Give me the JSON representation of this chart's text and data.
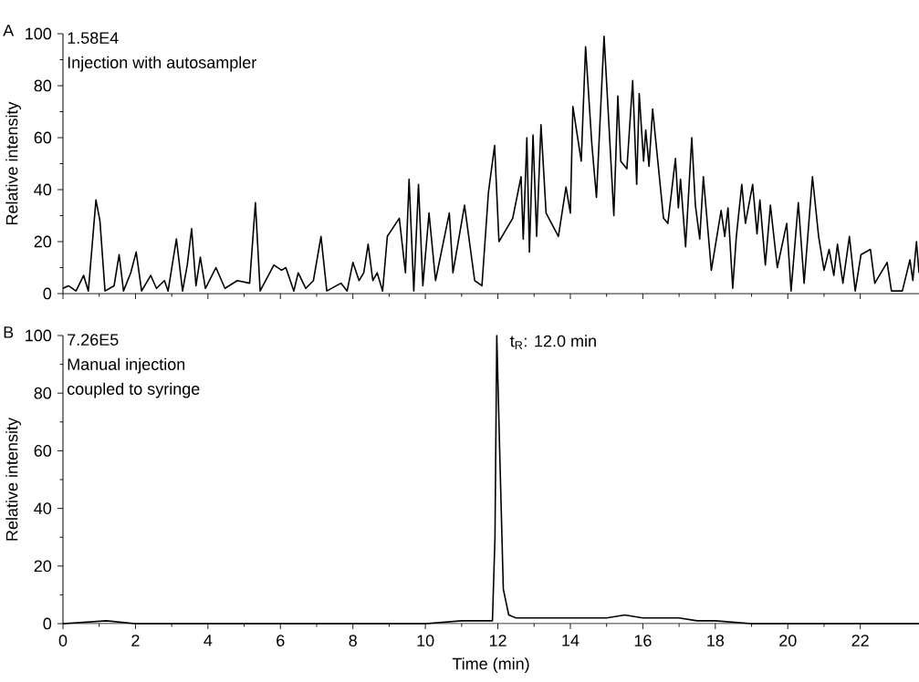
{
  "chart_data": [
    {
      "type": "line",
      "ylabel": "Relative intensity",
      "annotations": [
        "A",
        "1.58E4",
        "Injection with autosampler"
      ],
      "tick_labels": "y",
      "xlim": [
        0,
        23.62
      ],
      "ylim": [
        0,
        100
      ],
      "xticks": [
        {
          "value": 0,
          "label": null
        },
        {
          "value": 2,
          "label": null
        },
        {
          "value": 4,
          "label": null
        },
        {
          "value": 6,
          "label": null
        },
        {
          "value": 8,
          "label": null
        },
        {
          "value": 10,
          "label": null
        },
        {
          "value": 12,
          "label": null
        },
        {
          "value": 14,
          "label": null
        },
        {
          "value": 16,
          "label": null
        },
        {
          "value": 18,
          "label": null
        },
        {
          "value": 20,
          "label": null
        },
        {
          "value": 22,
          "label": null
        }
      ],
      "yticks": [
        0,
        20,
        40,
        60,
        80,
        100
      ],
      "color": "#000000",
      "x": [
        0,
        0.15,
        0.36,
        0.57,
        0.7,
        0.91,
        1.02,
        1.16,
        1.41,
        1.55,
        1.67,
        1.87,
        2.02,
        2.17,
        2.42,
        2.58,
        2.8,
        2.9,
        3.13,
        3.3,
        3.43,
        3.55,
        3.67,
        3.79,
        3.93,
        4.22,
        4.47,
        4.81,
        5.15,
        5.31,
        5.44,
        5.82,
        6.03,
        6.15,
        6.37,
        6.49,
        6.7,
        6.91,
        7.12,
        7.28,
        7.67,
        7.84,
        8.0,
        8.17,
        8.3,
        8.42,
        8.55,
        8.67,
        8.82,
        8.95,
        9.28,
        9.45,
        9.55,
        9.68,
        9.81,
        9.93,
        10.1,
        10.28,
        10.66,
        10.76,
        11.08,
        11.36,
        11.56,
        11.74,
        11.91,
        12.03,
        12.41,
        12.64,
        12.7,
        12.8,
        12.87,
        12.97,
        13.07,
        13.19,
        13.33,
        13.67,
        13.88,
        14.0,
        14.07,
        14.3,
        14.42,
        14.59,
        14.72,
        14.93,
        15.06,
        15.2,
        15.31,
        15.39,
        15.56,
        15.72,
        15.83,
        15.9,
        16.02,
        16.08,
        16.17,
        16.27,
        16.57,
        16.69,
        16.9,
        16.98,
        17.04,
        17.18,
        17.35,
        17.45,
        17.57,
        17.67,
        17.89,
        18.16,
        18.26,
        18.35,
        18.48,
        18.58,
        18.73,
        18.83,
        19.03,
        19.15,
        19.23,
        19.38,
        19.52,
        19.71,
        19.97,
        20.09,
        20.29,
        20.45,
        20.68,
        20.85,
        21.0,
        21.14,
        21.27,
        21.37,
        21.52,
        21.7,
        21.86,
        22.02,
        22.28,
        22.4,
        22.74,
        22.86,
        23.16,
        23.37,
        23.45,
        23.55,
        23.62
      ],
      "values": [
        2,
        3,
        1,
        7,
        1,
        36,
        28,
        1,
        3,
        15,
        1,
        8,
        16,
        1,
        7,
        2,
        5,
        1,
        21,
        1,
        11,
        25,
        3,
        14,
        2,
        10,
        2,
        5,
        4,
        35,
        1,
        11,
        9,
        10,
        1,
        8,
        2,
        5,
        22,
        1,
        4,
        1,
        12,
        5,
        8,
        19,
        5,
        8,
        1,
        22,
        29,
        8,
        44,
        1,
        42,
        3,
        31,
        5,
        31,
        8,
        34,
        5,
        3,
        39,
        57,
        20,
        29,
        45,
        21,
        60,
        16,
        61,
        22,
        65,
        31,
        22,
        41,
        31,
        72,
        51,
        95,
        58,
        37,
        99,
        66,
        30,
        76,
        51,
        48,
        82,
        42,
        77,
        51,
        63,
        49,
        71,
        29,
        27,
        52,
        33,
        44,
        18,
        60,
        34,
        21,
        45,
        9,
        32,
        22,
        33,
        2,
        22,
        42,
        27,
        42,
        23,
        36,
        11,
        34,
        10,
        27,
        1,
        35,
        4,
        45,
        22,
        9,
        17,
        7,
        19,
        4,
        22,
        1,
        15,
        17,
        4,
        12,
        1,
        1,
        13,
        5,
        20,
        8
      ]
    },
    {
      "type": "line",
      "xlabel": "Time (min)",
      "ylabel": "Relative intensity",
      "annotations": [
        "B",
        "7.26E5",
        "Manual injection",
        "coupled to syringe",
        {
          "text": "t$_{R}$: 12.0 min",
          "x": 12.0,
          "y": 100
        }
      ],
      "xlim": [
        0,
        23.62
      ],
      "ylim": [
        0,
        100
      ],
      "xticks": [
        0,
        2,
        4,
        6,
        8,
        10,
        12,
        14,
        16,
        18,
        20,
        22
      ],
      "yticks": [
        0,
        20,
        40,
        60,
        80,
        100
      ],
      "color": "#000000",
      "x": [
        0,
        1.2,
        2.0,
        6.0,
        10.0,
        11.0,
        11.85,
        11.92,
        11.97,
        12.05,
        12.15,
        12.3,
        12.5,
        13.0,
        14.0,
        15.0,
        15.5,
        16.0,
        17.0,
        17.5,
        18.0,
        19.0,
        20.0,
        21.0,
        22.0,
        23.62
      ],
      "values": [
        0,
        1,
        0,
        0,
        0,
        1,
        1,
        30,
        100,
        60,
        12,
        3,
        2,
        2,
        2,
        2,
        3,
        2,
        2,
        1,
        1,
        0,
        0,
        0,
        0,
        0
      ]
    }
  ]
}
